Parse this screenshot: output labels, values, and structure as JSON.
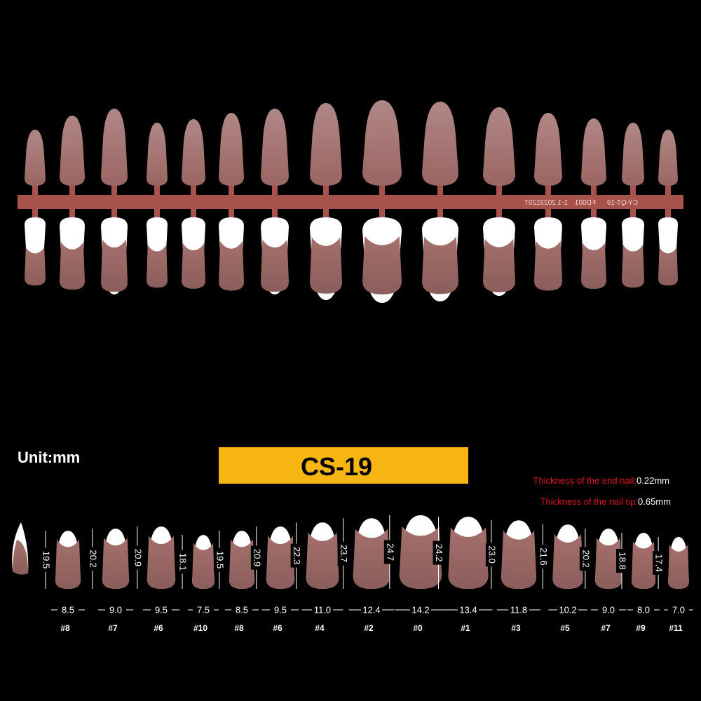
{
  "unit_label": "Unit:mm",
  "model": "CS-19",
  "thickness": [
    {
      "label": "Thickness of the end nail:",
      "value": "0.22mm"
    },
    {
      "label": "Thickness of the nail tip:",
      "value": "0.65mm"
    }
  ],
  "tray_labels": [
    "FD001",
    "1-1 20231207",
    "CY-QT-19"
  ],
  "nails": [
    {
      "height": "19.5",
      "width": "8.5",
      "size": "#8"
    },
    {
      "height": "20.2",
      "width": "9.0",
      "size": "#7"
    },
    {
      "height": "20.9",
      "width": "9.5",
      "size": "#6"
    },
    {
      "height": "18.1",
      "width": "7.5",
      "size": "#10"
    },
    {
      "height": "19.5",
      "width": "8.5",
      "size": "#8"
    },
    {
      "height": "20.9",
      "width": "9.5",
      "size": "#6"
    },
    {
      "height": "22.3",
      "width": "11.0",
      "size": "#4"
    },
    {
      "height": "23.7",
      "width": "12.4",
      "size": "#2"
    },
    {
      "height": "24.7",
      "width": "14.2",
      "size": "#0"
    },
    {
      "height": "24.2",
      "width": "13.4",
      "size": "#1"
    },
    {
      "height": "23.0",
      "width": "11.8",
      "size": "#3"
    },
    {
      "height": "21.6",
      "width": "10.2",
      "size": "#5"
    },
    {
      "height": "20.2",
      "width": "9.0",
      "size": "#7"
    },
    {
      "height": "18.8",
      "width": "8.0",
      "size": "#9"
    },
    {
      "height": "17.4",
      "width": "7.0",
      "size": "#11"
    }
  ]
}
